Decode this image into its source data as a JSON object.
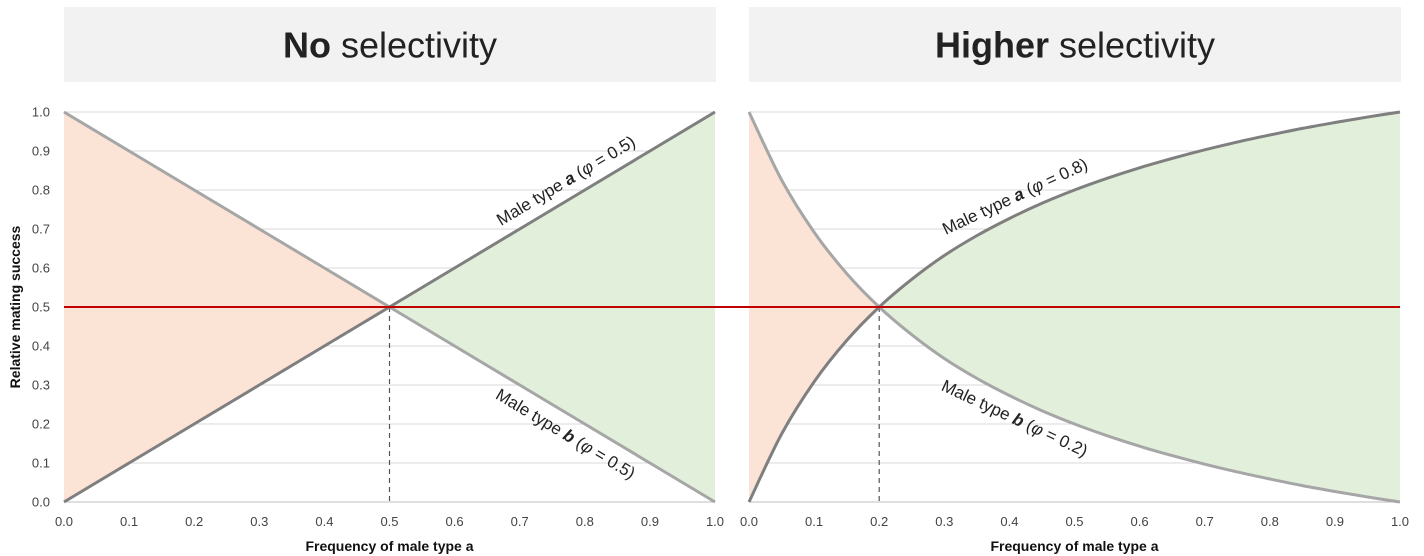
{
  "ylabel": "Relative mating success",
  "xlabel": "Frequency of male type a",
  "xlabel_plain": "Frequency of male type ",
  "xlabel_italic": "a",
  "ref_line_y": 0.5,
  "colors": {
    "left_fill": "#fbe3d6",
    "right_fill": "#e2efda",
    "reference_line": "#c00000",
    "curve_a": "#7f7f7f",
    "curve_b": "#a6a6a6",
    "title_box": "#f2f2f2"
  },
  "chart_data": [
    {
      "type": "line",
      "title": "No selectivity",
      "title_bold": "No",
      "title_rest": " selectivity",
      "xlabel": "Frequency of male type a",
      "ylabel": "Relative mating success",
      "xlim": [
        0,
        1
      ],
      "ylim": [
        0,
        1
      ],
      "x_ticks": [
        "0.0",
        "0.1",
        "0.2",
        "0.3",
        "0.4",
        "0.5",
        "0.6",
        "0.7",
        "0.8",
        "0.9",
        "1.0"
      ],
      "y_ticks": [
        "0.0",
        "0.1",
        "0.2",
        "0.3",
        "0.4",
        "0.5",
        "0.6",
        "0.7",
        "0.8",
        "0.9",
        "1.0"
      ],
      "grid": true,
      "phi": 0.5,
      "intersection": {
        "x": 0.5,
        "y": 0.5
      },
      "x": [
        0.0,
        0.1,
        0.2,
        0.3,
        0.4,
        0.5,
        0.6,
        0.7,
        0.8,
        0.9,
        1.0
      ],
      "series": [
        {
          "name": "Male type a (φ = 0.5)",
          "label_pre": "Male type ",
          "label_bold": "a",
          "label_paren_open": " (",
          "label_phi": "φ",
          "label_post": " = 0.5)",
          "values": [
            0.0,
            0.1,
            0.2,
            0.3,
            0.4,
            0.5,
            0.6,
            0.7,
            0.8,
            0.9,
            1.0
          ]
        },
        {
          "name": "Male type b (φ = 0.5)",
          "label_pre": "Male type ",
          "label_bold": "b",
          "label_paren_open": " (",
          "label_phi": "φ",
          "label_post": " = 0.5)",
          "values": [
            1.0,
            0.9,
            0.8,
            0.7,
            0.6,
            0.5,
            0.4,
            0.3,
            0.2,
            0.1,
            0.0
          ]
        }
      ]
    },
    {
      "type": "line",
      "title": "Higher selectivity",
      "title_bold": "Higher",
      "title_rest": " selectivity",
      "xlabel": "Frequency of male type a",
      "ylabel": "",
      "xlim": [
        0,
        1
      ],
      "ylim": [
        0,
        1
      ],
      "x_ticks": [
        "0.0",
        "0.1",
        "0.2",
        "0.3",
        "0.4",
        "0.5",
        "0.6",
        "0.7",
        "0.8",
        "0.9",
        "1.0"
      ],
      "grid": true,
      "phi": 0.8,
      "intersection": {
        "x": 0.2,
        "y": 0.5
      },
      "x": [
        0.0,
        0.05,
        0.1,
        0.15,
        0.2,
        0.25,
        0.3,
        0.35,
        0.4,
        0.45,
        0.5,
        0.55,
        0.6,
        0.65,
        0.7,
        0.75,
        0.8,
        0.85,
        0.9,
        0.95,
        1.0
      ],
      "series": [
        {
          "name": "Male type a (φ = 0.8)",
          "label_pre": "Male type ",
          "label_bold": "a",
          "label_paren_open": " (",
          "label_phi": "φ",
          "label_post": " = 0.8)",
          "values": [
            0.0,
            0.174,
            0.308,
            0.414,
            0.5,
            0.571,
            0.632,
            0.683,
            0.727,
            0.766,
            0.8,
            0.83,
            0.857,
            0.881,
            0.903,
            0.923,
            0.941,
            0.958,
            0.973,
            0.987,
            1.0
          ]
        },
        {
          "name": "Male type b (φ = 0.2)",
          "label_pre": "Male type ",
          "label_bold": "b",
          "label_paren_open": " (",
          "label_phi": "φ",
          "label_post": " = 0.2)",
          "values": [
            1.0,
            0.826,
            0.692,
            0.586,
            0.5,
            0.429,
            0.368,
            0.317,
            0.273,
            0.234,
            0.2,
            0.17,
            0.143,
            0.119,
            0.097,
            0.077,
            0.059,
            0.042,
            0.027,
            0.013,
            0.0
          ]
        }
      ]
    }
  ]
}
